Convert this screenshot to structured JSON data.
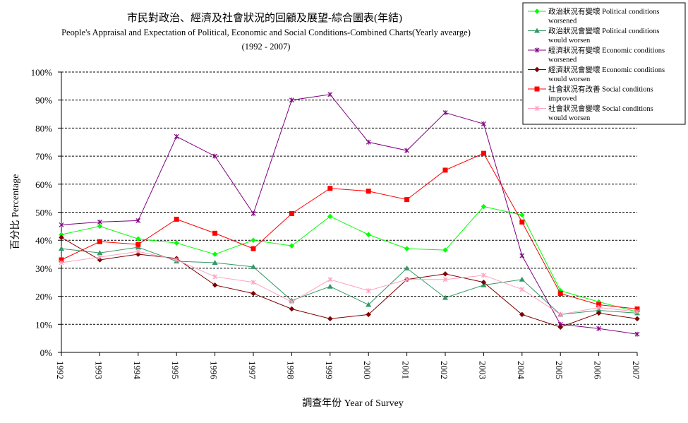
{
  "chart_data": {
    "type": "line",
    "title": "市民對政治、經濟及社會狀況的回顧及展望-綜合圖表(年結)",
    "subtitle": "People's Appraisal and Expectation of Political, Economic and Social Conditions-Combined Charts(Yearly avearge)",
    "subtitle2": "(1992 - 2007)",
    "xlabel": "調查年份 Year of Survey",
    "ylabel": "百分比 Percentage",
    "ylim": [
      0,
      100
    ],
    "yticks": [
      "0%",
      "10%",
      "20%",
      "30%",
      "40%",
      "50%",
      "60%",
      "70%",
      "80%",
      "90%",
      "100%"
    ],
    "ytick_values": [
      0,
      10,
      20,
      30,
      40,
      50,
      60,
      70,
      80,
      90,
      100
    ],
    "grid": "horizontal-dashed",
    "legend_position": "top-right",
    "categories": [
      "1992",
      "1993",
      "1994",
      "1995",
      "1996",
      "1997",
      "1998",
      "1999",
      "2000",
      "2001",
      "2002",
      "2003",
      "2004",
      "2005",
      "2006",
      "2007"
    ],
    "series": [
      {
        "name_line1": "政治狀況有變壞 Political conditions",
        "name_line2": "worsened",
        "color": "#00ff00",
        "marker": "diamond",
        "values": [
          42,
          45,
          40.5,
          39,
          35,
          40,
          38,
          48.5,
          42,
          37,
          36.5,
          52,
          49,
          22,
          18,
          14.5
        ]
      },
      {
        "name_line1": "政治狀況會變壞 Political conditions",
        "name_line2": "would worsen",
        "color": "#339966",
        "marker": "triangle",
        "values": [
          37,
          35.5,
          37.5,
          32.5,
          32,
          30.5,
          18.5,
          23.5,
          17,
          30,
          19.5,
          24,
          26,
          13.5,
          15,
          14
        ]
      },
      {
        "name_line1": "經濟狀況有變壞 Economic conditions",
        "name_line2": "worsened",
        "color": "#800080",
        "marker": "x",
        "values": [
          45.5,
          46.5,
          47,
          77,
          70,
          49.5,
          90,
          92,
          75,
          72,
          85.5,
          81.5,
          34.5,
          10,
          8.5,
          6.5
        ]
      },
      {
        "name_line1": "經濟狀況會變壞 Economic conditions",
        "name_line2": "would worsen",
        "color": "#800000",
        "marker": "diamond",
        "values": [
          41,
          33,
          35,
          33.5,
          24,
          21,
          15.5,
          12,
          13.5,
          26,
          28,
          25,
          13.5,
          9,
          14,
          12
        ]
      },
      {
        "name_line1": "社會狀況有改善 Social conditions",
        "name_line2": "improved",
        "color": "#ff0000",
        "marker": "square",
        "values": [
          33,
          39.5,
          38.5,
          47.5,
          42.5,
          37,
          49.5,
          58.5,
          57.5,
          54.5,
          65,
          71,
          46.5,
          21,
          17,
          15.5
        ]
      },
      {
        "name_line1": "社會狀況會變壞 Social conditions",
        "name_line2": "would worsen",
        "color": "#ffa0c0",
        "marker": "x",
        "values": [
          32,
          34,
          36,
          33,
          27,
          25,
          18,
          26,
          22,
          26,
          26,
          27.5,
          22.5,
          13.5,
          16,
          14.5
        ]
      }
    ]
  }
}
